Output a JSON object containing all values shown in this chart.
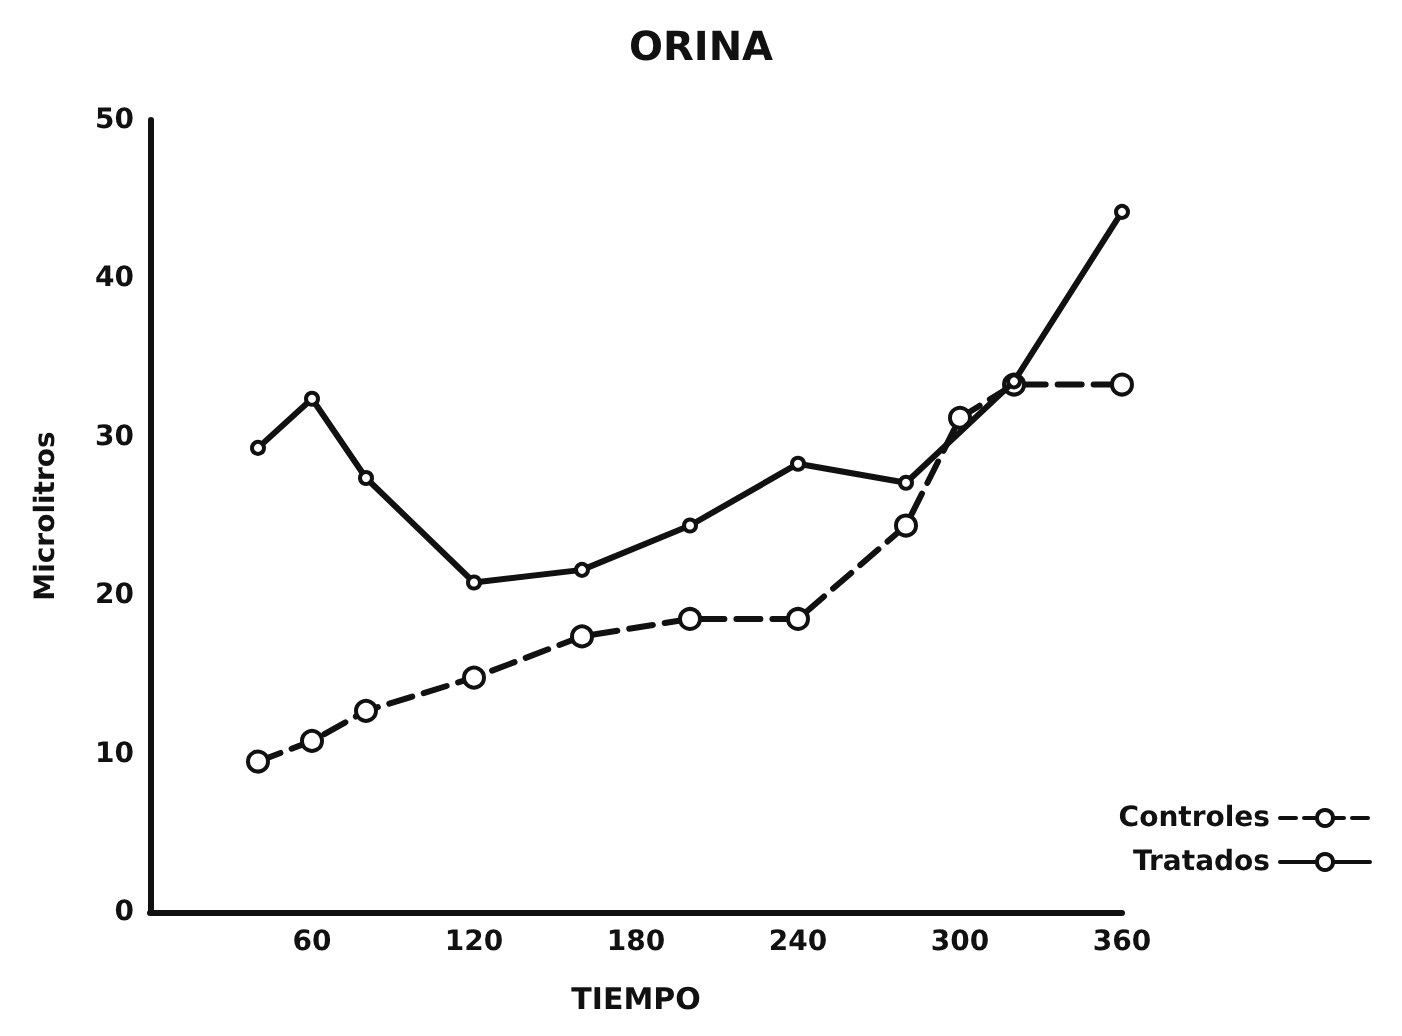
{
  "chart_data": {
    "type": "line",
    "title": "ORINA",
    "xlabel": "TIEMPO",
    "ylabel": "Microlitros",
    "x": [
      40,
      60,
      80,
      120,
      160,
      200,
      240,
      280,
      300,
      320,
      360
    ],
    "series": [
      {
        "name": "Controles",
        "color": "#111111",
        "line_style": "dashed",
        "values": [
          9.5,
          10.8,
          12.7,
          14.8,
          17.4,
          18.5,
          18.5,
          24.4,
          31.2,
          33.3,
          33.3
        ]
      },
      {
        "name": "Tratados",
        "color": "#111111",
        "line_style": "solid",
        "values": [
          29.3,
          32.4,
          27.4,
          20.8,
          21.6,
          24.4,
          28.3,
          27.1,
          null,
          33.5,
          44.2
        ]
      }
    ],
    "xlim": [
      0,
      360
    ],
    "xticks": [
      60,
      120,
      180,
      240,
      300,
      360
    ],
    "ylim": [
      0,
      50
    ],
    "yticks": [
      0,
      10,
      20,
      30,
      40,
      50
    ],
    "marker": "circle",
    "legend": "bottom right",
    "grid": false
  }
}
